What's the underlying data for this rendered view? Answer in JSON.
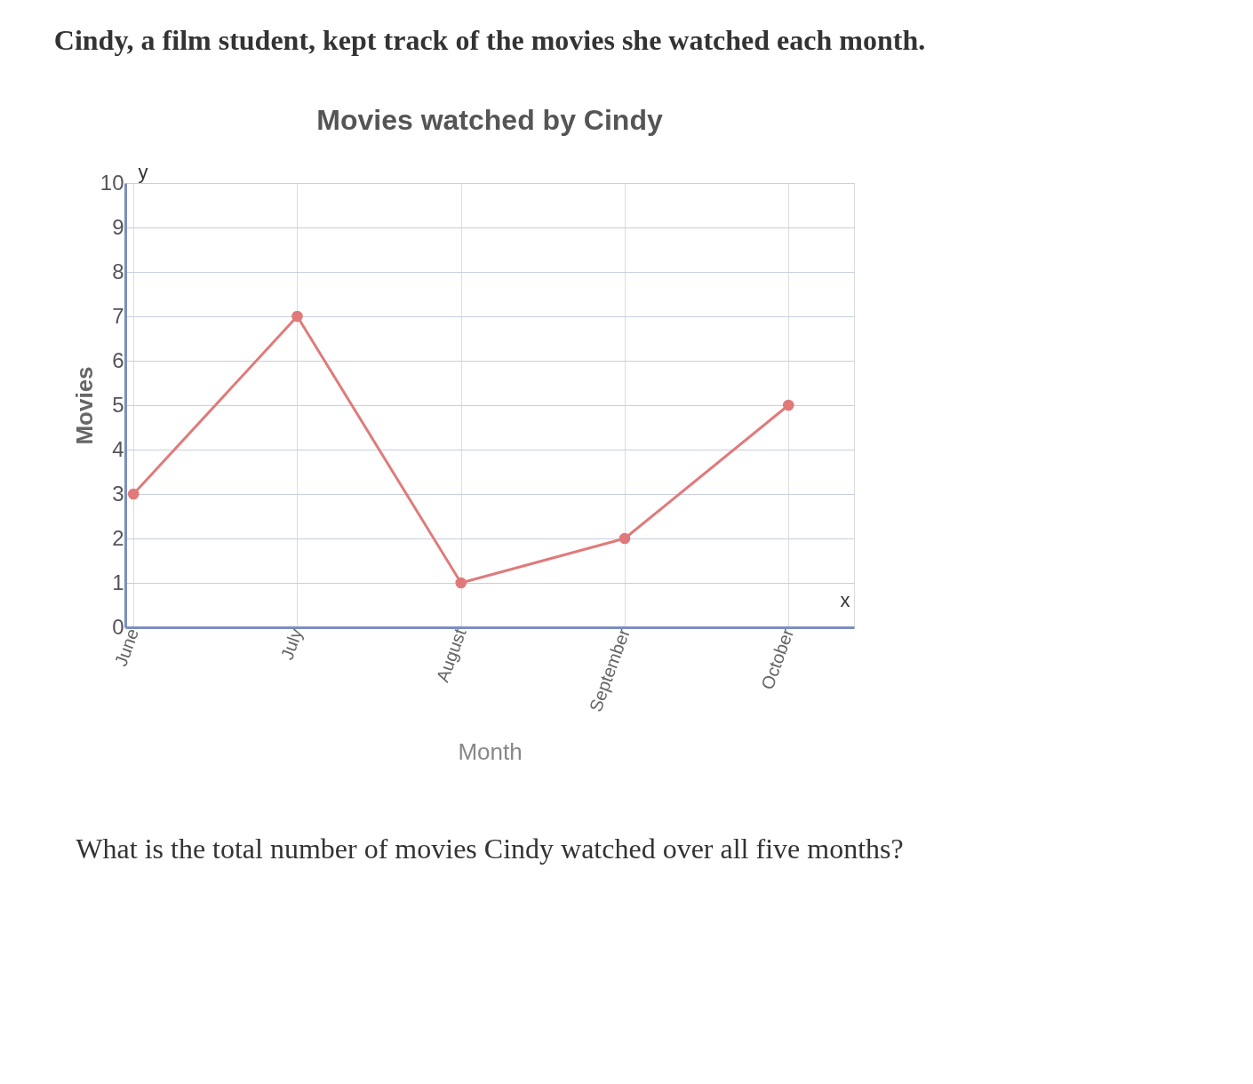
{
  "chart_data": {
    "type": "line",
    "title": "Movies watched by Cindy",
    "xlabel": "Month",
    "ylabel": "Movies",
    "categories": [
      "June",
      "July",
      "August",
      "September",
      "October"
    ],
    "series": [
      {
        "color": "#e07a7a",
        "values": [
          3,
          7,
          1,
          2,
          5
        ]
      }
    ],
    "ylim": [
      0,
      10
    ],
    "yticks": [
      0,
      1,
      2,
      3,
      4,
      5,
      6,
      7,
      8,
      9,
      10
    ],
    "grid": true,
    "marker": "circle",
    "line_style": "solid",
    "annotations": [
      "Cindy, a film student, kept track of the movies she watched each month.",
      "What is the total number of movies Cindy watched over all five months?",
      "y",
      "x"
    ]
  }
}
